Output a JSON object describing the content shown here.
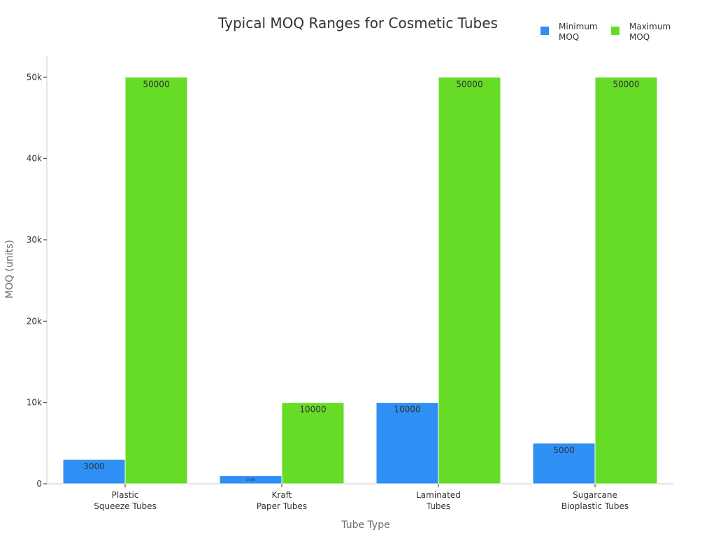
{
  "chart_data": {
    "type": "bar",
    "title": "Typical MOQ Ranges for Cosmetic Tubes",
    "xlabel": "Tube Type",
    "ylabel": "MOQ (units)",
    "categories": [
      [
        "Plastic",
        "Squeeze Tubes"
      ],
      [
        "Kraft",
        "Paper Tubes"
      ],
      [
        "Laminated",
        "Tubes"
      ],
      [
        "Sugarcane",
        "Bioplastic Tubes"
      ]
    ],
    "series": [
      {
        "name": [
          "Minimum",
          "MOQ"
        ],
        "color": "#2e90f5",
        "values": [
          3000,
          1000,
          10000,
          5000
        ],
        "labels": [
          "3000",
          "1000",
          "10000",
          "5000"
        ]
      },
      {
        "name": [
          "Maximum",
          "MOQ"
        ],
        "color": "#66dc27",
        "values": [
          50000,
          10000,
          50000,
          50000
        ],
        "labels": [
          "50000",
          "10000",
          "50000",
          "50000"
        ]
      }
    ],
    "ylim": [
      0,
      52600
    ],
    "yticks": [
      0,
      10000,
      20000,
      30000,
      40000,
      50000
    ],
    "ytick_labels": [
      "0",
      "10k",
      "20k",
      "30k",
      "40k",
      "50k"
    ],
    "grid": false,
    "legend_position": "top-right",
    "data_labels": "inside-top"
  }
}
